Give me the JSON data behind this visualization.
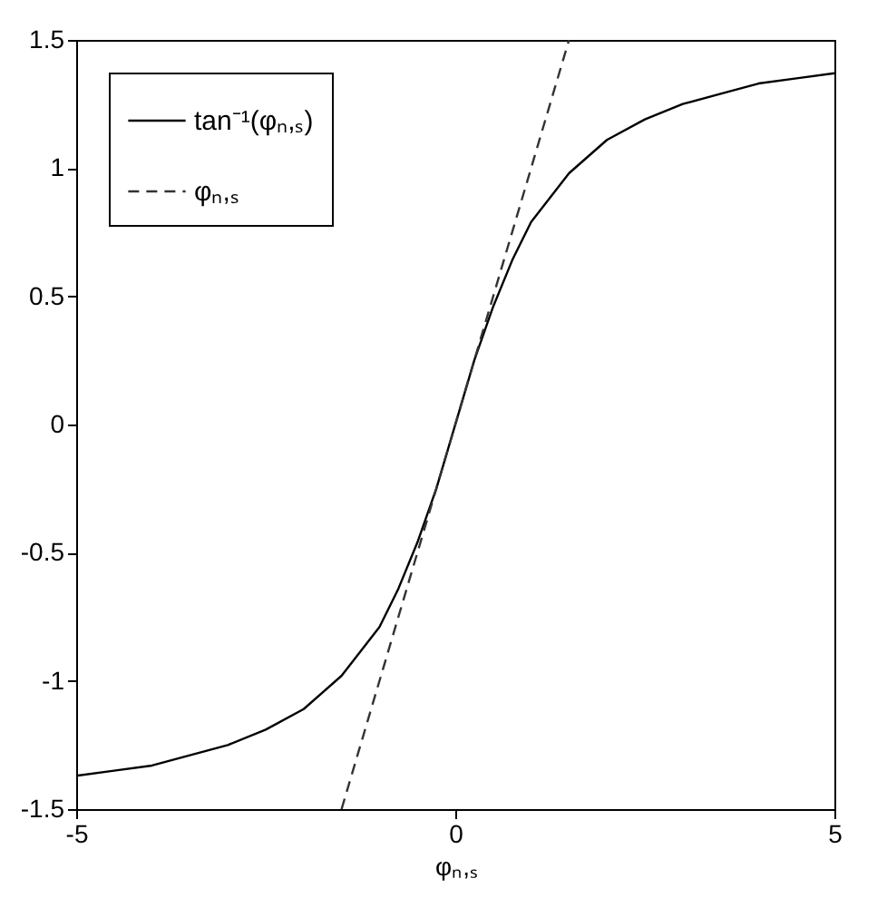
{
  "chart_data": {
    "type": "line",
    "xlabel": "φₙ,ₛ",
    "xlim": [
      -5,
      5
    ],
    "xticks": [
      -5,
      0,
      5
    ],
    "ylim": [
      -1.5,
      1.5
    ],
    "yticks": [
      -1.5,
      -1,
      -0.5,
      0,
      0.5,
      1,
      1.5
    ],
    "grid": false,
    "legend": "top left",
    "marker": "none",
    "series": [
      {
        "name": "tan⁻¹(φₙ,ₛ)",
        "color": "#000000",
        "line_style": "solid",
        "x": [
          -5,
          -4.5,
          -4,
          -3.5,
          -3,
          -2.5,
          -2,
          -1.5,
          -1,
          -0.75,
          -0.5,
          -0.25,
          0,
          0.25,
          0.5,
          0.75,
          1,
          1.5,
          2,
          2.5,
          3,
          3.5,
          4,
          4.5,
          5
        ],
        "values": [
          -1.37,
          -1.35,
          -1.33,
          -1.29,
          -1.25,
          -1.19,
          -1.11,
          -0.98,
          -0.79,
          -0.64,
          -0.46,
          -0.25,
          0,
          0.25,
          0.46,
          0.64,
          0.79,
          0.98,
          1.11,
          1.19,
          1.25,
          1.29,
          1.33,
          1.35,
          1.37
        ]
      },
      {
        "name": "φₙ,ₛ",
        "color": "#333333",
        "line_style": "dashed",
        "x": [
          -1.5,
          1.5
        ],
        "values": [
          -1.5,
          1.5
        ]
      }
    ]
  }
}
